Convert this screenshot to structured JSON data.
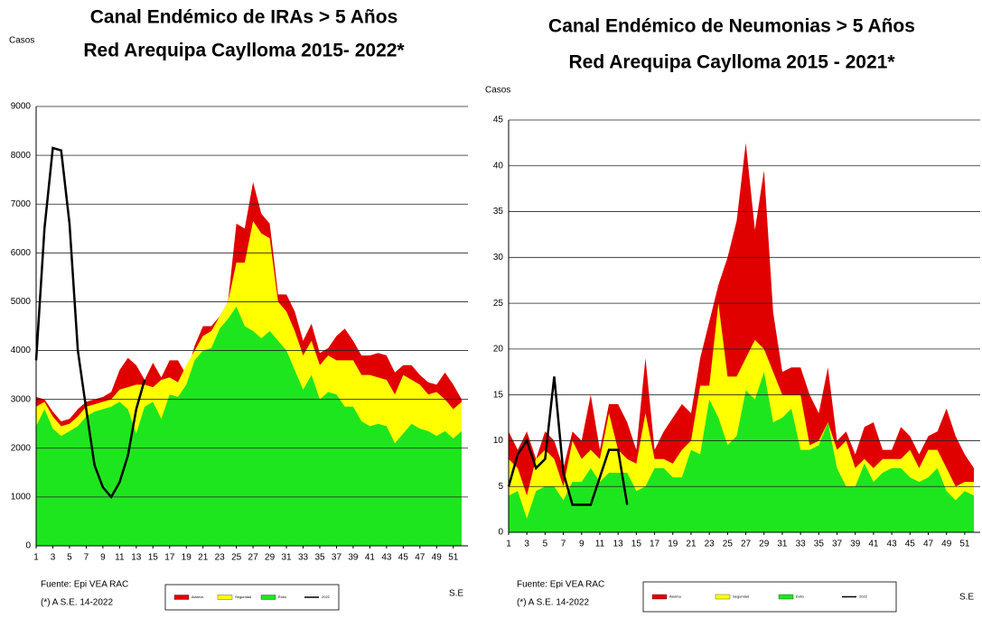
{
  "chart_data": [
    {
      "type": "area",
      "title": "Canal Endémico de IRAs > 5 Años",
      "subtitle": "Red Arequipa Caylloma 2015- 2022*",
      "ylabel": "Casos",
      "xlabel": "S.E",
      "source": "Fuente: Epi VEA RAC",
      "note": "(*) A S.E. 14-2022",
      "x": [
        1,
        2,
        3,
        4,
        5,
        6,
        7,
        8,
        9,
        10,
        11,
        12,
        13,
        14,
        15,
        16,
        17,
        18,
        19,
        20,
        21,
        22,
        23,
        24,
        25,
        26,
        27,
        28,
        29,
        30,
        31,
        32,
        33,
        34,
        35,
        36,
        37,
        38,
        39,
        40,
        41,
        42,
        43,
        44,
        45,
        46,
        47,
        48,
        49,
        50,
        51,
        52
      ],
      "xlim": [
        1,
        52
      ],
      "xticks": [
        1,
        3,
        5,
        7,
        9,
        11,
        13,
        15,
        17,
        19,
        21,
        23,
        25,
        27,
        29,
        31,
        33,
        35,
        37,
        39,
        41,
        43,
        45,
        47,
        49,
        51
      ],
      "ylim": [
        0,
        9000
      ],
      "yticks": [
        0,
        1000,
        2000,
        3000,
        4000,
        5000,
        6000,
        7000,
        8000,
        9000
      ],
      "grid": true,
      "series": [
        {
          "name": "Alarma",
          "color": "#e00000",
          "values": [
            3050,
            3000,
            2750,
            2550,
            2600,
            2800,
            2950,
            3000,
            3050,
            3150,
            3600,
            3850,
            3700,
            3400,
            3750,
            3450,
            3800,
            3800,
            3500,
            4100,
            4500,
            4500,
            4700,
            5000,
            6600,
            6500,
            7450,
            6800,
            6600,
            5150,
            5150,
            4800,
            4200,
            4550,
            3950,
            4050,
            4300,
            4450,
            4200,
            3900,
            3900,
            3950,
            3900,
            3550,
            3700,
            3700,
            3500,
            3350,
            3300,
            3550,
            3300,
            3000
          ]
        },
        {
          "name": "Seguridad",
          "color": "#ffff00",
          "values": [
            2850,
            2950,
            2650,
            2450,
            2500,
            2650,
            2850,
            2900,
            2950,
            3000,
            3200,
            3250,
            3300,
            3300,
            3250,
            3400,
            3450,
            3350,
            3700,
            4000,
            4300,
            4400,
            4700,
            5000,
            5800,
            5800,
            6650,
            6400,
            6300,
            5000,
            4800,
            4400,
            3900,
            4200,
            3700,
            3900,
            3800,
            3800,
            3800,
            3500,
            3500,
            3450,
            3400,
            3100,
            3500,
            3400,
            3300,
            3100,
            3150,
            3000,
            2800,
            2950
          ]
        },
        {
          "name": "Éxito",
          "color": "#1ee61e",
          "values": [
            2450,
            2800,
            2400,
            2250,
            2350,
            2450,
            2650,
            2750,
            2800,
            2850,
            2950,
            2800,
            2300,
            2850,
            2950,
            2600,
            3100,
            3050,
            3300,
            3800,
            4000,
            4050,
            4450,
            4650,
            4900,
            4500,
            4400,
            4250,
            4400,
            4200,
            4000,
            3600,
            3200,
            3500,
            3000,
            3150,
            3100,
            2850,
            2850,
            2550,
            2450,
            2500,
            2450,
            2100,
            2300,
            2500,
            2400,
            2350,
            2250,
            2350,
            2200,
            2350
          ]
        },
        {
          "name": "2022",
          "color": "#000000",
          "type": "line",
          "x": [
            1,
            2,
            3,
            4,
            5,
            6,
            7,
            8,
            9,
            10,
            11,
            12,
            13,
            14
          ],
          "values": [
            3800,
            6500,
            8150,
            8100,
            6600,
            4000,
            2800,
            1650,
            1200,
            1000,
            1300,
            1850,
            2800,
            3400
          ]
        }
      ]
    },
    {
      "type": "area",
      "title": "Canal Endémico de Neumonias > 5 Años",
      "subtitle": "Red Arequipa Caylloma 2015 - 2021*",
      "ylabel": "Casos",
      "xlabel": "S.E",
      "source": "Fuente: Epi VEA RAC",
      "note": "(*) A S.E. 14-2022",
      "x": [
        1,
        2,
        3,
        4,
        5,
        6,
        7,
        8,
        9,
        10,
        11,
        12,
        13,
        14,
        15,
        16,
        17,
        18,
        19,
        20,
        21,
        22,
        23,
        24,
        25,
        26,
        27,
        28,
        29,
        30,
        31,
        32,
        33,
        34,
        35,
        36,
        37,
        38,
        39,
        40,
        41,
        42,
        43,
        44,
        45,
        46,
        47,
        48,
        49,
        50,
        51,
        52
      ],
      "xlim": [
        1,
        52
      ],
      "xticks": [
        1,
        3,
        5,
        7,
        9,
        11,
        13,
        15,
        17,
        19,
        21,
        23,
        25,
        27,
        29,
        31,
        33,
        35,
        37,
        39,
        41,
        43,
        45,
        47,
        49,
        51
      ],
      "ylim": [
        0,
        45
      ],
      "yticks": [
        0,
        5,
        10,
        15,
        20,
        25,
        30,
        35,
        40,
        45
      ],
      "grid": true,
      "series": [
        {
          "name": "Alarma",
          "color": "#e00000",
          "values": [
            11,
            9,
            11,
            8,
            11,
            10,
            7,
            11,
            10,
            15,
            9,
            14,
            14,
            12,
            9,
            19,
            9,
            11,
            12.5,
            14,
            13,
            19,
            23,
            27,
            30,
            34,
            42.5,
            33,
            39.5,
            24,
            17.5,
            18,
            18,
            15,
            13,
            18,
            10,
            11,
            8.5,
            11.5,
            12,
            9,
            9,
            11.5,
            10.5,
            8.5,
            10.5,
            11,
            13.5,
            10.5,
            8.5,
            7
          ]
        },
        {
          "name": "Seguridad",
          "color": "#ffff00",
          "values": [
            8,
            7,
            4,
            8,
            9,
            8,
            5,
            10,
            8,
            9,
            8,
            13,
            9,
            8,
            7.5,
            13,
            8,
            8,
            7.5,
            9,
            10,
            16,
            16,
            25,
            17,
            17,
            19,
            21,
            20,
            17.5,
            15,
            15,
            15,
            9.5,
            10,
            12,
            9,
            10,
            7,
            8,
            7,
            8,
            8,
            8,
            9,
            7,
            9,
            9,
            7,
            5,
            5.5,
            5.5
          ]
        },
        {
          "name": "Éxito",
          "color": "#1ee61e",
          "values": [
            4,
            4.5,
            1.5,
            4.5,
            5,
            5,
            3.5,
            5.5,
            5.5,
            7,
            5.5,
            6.5,
            6.5,
            6.5,
            4.5,
            5,
            7,
            7,
            6,
            6,
            9,
            8.5,
            14.5,
            12.5,
            9.5,
            10.5,
            15.5,
            14.5,
            17.5,
            12,
            12.5,
            13.5,
            9,
            9,
            9.5,
            12,
            7,
            5,
            5,
            7.5,
            5.5,
            6.5,
            7,
            7,
            6,
            5.5,
            6,
            7,
            4.5,
            3.5,
            4.5,
            4
          ]
        },
        {
          "name": "2022",
          "color": "#000000",
          "type": "line",
          "x": [
            1,
            2,
            3,
            4,
            5,
            6,
            7,
            8,
            9,
            10,
            11,
            12,
            13,
            14
          ],
          "values": [
            5,
            8.5,
            10,
            7,
            8,
            17,
            6.5,
            3,
            3,
            3,
            6,
            9,
            9,
            3
          ]
        }
      ]
    }
  ]
}
